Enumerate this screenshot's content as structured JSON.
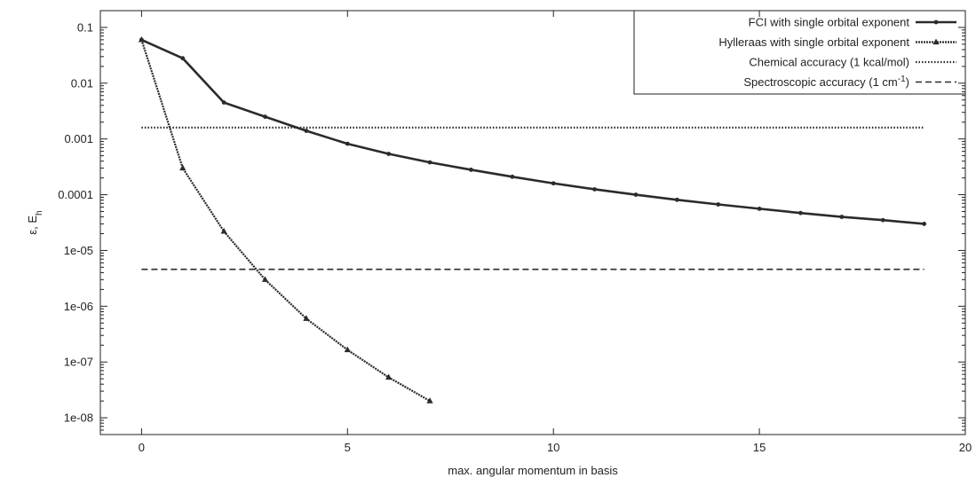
{
  "chart_data": {
    "type": "line",
    "title": "",
    "xlabel": "max. angular momentum in basis",
    "ylabel": "ε, E",
    "ylabel_subscript": "h",
    "x_scale": "linear",
    "y_scale": "log",
    "xlim": [
      -1,
      20
    ],
    "ylim": [
      5e-09,
      0.2
    ],
    "x_ticks": [
      0,
      5,
      10,
      15,
      20
    ],
    "x_tick_labels": [
      "0",
      "5",
      "10",
      "15",
      "20"
    ],
    "y_ticks": [
      1e-08,
      1e-07,
      1e-06,
      1e-05,
      0.0001,
      0.001,
      0.01,
      0.1
    ],
    "y_tick_labels": [
      "1e-08",
      "1e-07",
      "1e-06",
      "1e-05",
      "0.0001",
      "0.001",
      "0.01",
      "0.1"
    ],
    "grid": false,
    "legend_position": "top-right",
    "series": [
      {
        "name": "FCI with single orbital exponent",
        "style": "solid-thick",
        "marker": "point",
        "x": [
          0,
          1,
          2,
          3,
          4,
          5,
          6,
          7,
          8,
          9,
          10,
          11,
          12,
          13,
          14,
          15,
          16,
          17,
          18,
          19
        ],
        "y": [
          0.06,
          0.028,
          0.0045,
          0.0025,
          0.0014,
          0.00082,
          0.00054,
          0.00038,
          0.00028,
          0.00021,
          0.00016,
          0.000125,
          0.0001,
          8.1e-05,
          6.7e-05,
          5.6e-05,
          4.7e-05,
          4e-05,
          3.5e-05,
          3e-05
        ]
      },
      {
        "name": "Hylleraas with single orbital exponent",
        "style": "dotted-dense",
        "marker": "triangle",
        "x": [
          0,
          1,
          2,
          3,
          4,
          5,
          6,
          7
        ],
        "y": [
          0.06,
          0.0003,
          2.2e-05,
          3e-06,
          6e-07,
          1.65e-07,
          5.3e-08,
          2e-08
        ]
      },
      {
        "name": "Chemical accuracy (1 kcal/mol)",
        "style": "dotted",
        "marker": "none",
        "x": [
          0,
          19
        ],
        "y": [
          0.0016,
          0.0016
        ]
      },
      {
        "name": "Spectroscopic accuracy (1 cm",
        "name_superscript": "-1",
        "name_suffix": ")",
        "style": "dashed",
        "marker": "none",
        "x": [
          0,
          19
        ],
        "y": [
          4.6e-06,
          4.6e-06
        ]
      }
    ]
  },
  "colors": {
    "line": "#2b2b2b",
    "axis": "#222222",
    "background": "#ffffff"
  }
}
